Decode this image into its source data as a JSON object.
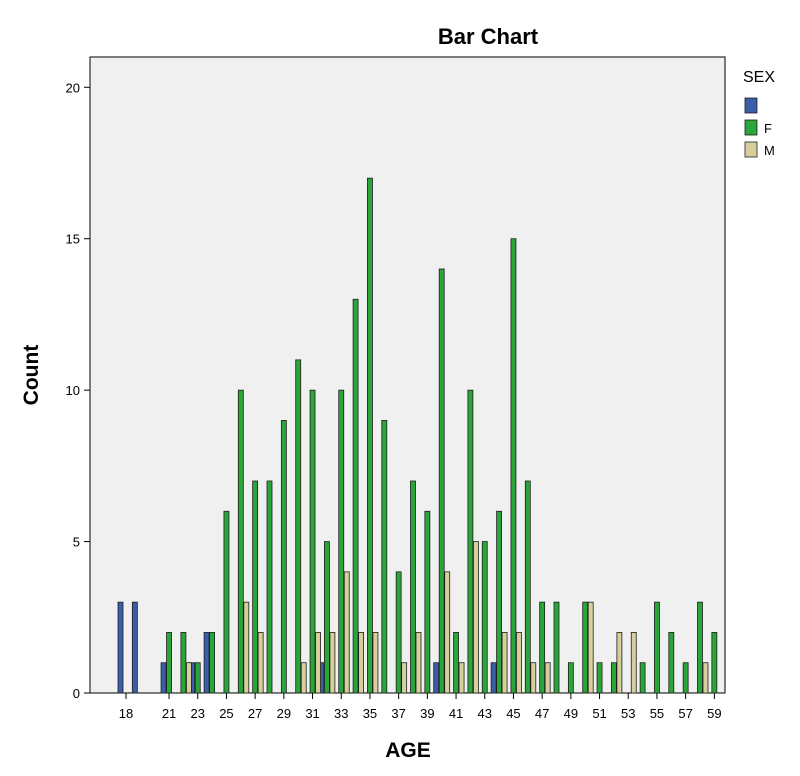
{
  "chart_data": {
    "type": "bar",
    "title": "Bar Chart",
    "xlabel": "AGE",
    "ylabel": "Count",
    "ylim": [
      0,
      21
    ],
    "y_ticks": [
      0,
      5,
      10,
      15,
      20
    ],
    "x": [
      18,
      19,
      20,
      21,
      22,
      23,
      24,
      25,
      26,
      27,
      28,
      29,
      30,
      31,
      32,
      33,
      34,
      35,
      36,
      37,
      38,
      39,
      40,
      41,
      42,
      43,
      44,
      45,
      46,
      47,
      48,
      49,
      50,
      51,
      52,
      53,
      54,
      55,
      56,
      57,
      58,
      59
    ],
    "x_tick_labels": [
      "18",
      "21",
      "23",
      "25",
      "27",
      "29",
      "31",
      "33",
      "35",
      "37",
      "39",
      "41",
      "43",
      "45",
      "47",
      "49",
      "51",
      "53",
      "55",
      "57",
      "59"
    ],
    "x_tick_positions": [
      18,
      21,
      23,
      25,
      27,
      29,
      31,
      33,
      35,
      37,
      39,
      41,
      43,
      45,
      47,
      49,
      51,
      53,
      55,
      57,
      59
    ],
    "grid": false,
    "legend": {
      "title": "SEX",
      "placement": "right"
    },
    "series": [
      {
        "name": "",
        "color": "#3a5fa8",
        "values": [
          3,
          3,
          0,
          1,
          0,
          1,
          2,
          0,
          0,
          0,
          0,
          0,
          0,
          0,
          1,
          0,
          0,
          0,
          0,
          0,
          0,
          0,
          1,
          0,
          0,
          0,
          1,
          0,
          0,
          0,
          0,
          0,
          0,
          0,
          0,
          0,
          0,
          0,
          0,
          0,
          0,
          0
        ]
      },
      {
        "name": "F",
        "color": "#2aa53a",
        "values": [
          0,
          0,
          0,
          2,
          2,
          1,
          2,
          6,
          10,
          7,
          7,
          9,
          11,
          10,
          5,
          10,
          13,
          17,
          9,
          4,
          7,
          6,
          14,
          2,
          10,
          5,
          6,
          15,
          7,
          3,
          3,
          1,
          3,
          1,
          1,
          0,
          1,
          3,
          2,
          1,
          3,
          2
        ]
      },
      {
        "name": "M",
        "color": "#d6cf9c",
        "values": [
          0,
          0,
          0,
          0,
          1,
          0,
          0,
          0,
          3,
          2,
          0,
          0,
          1,
          2,
          2,
          4,
          2,
          2,
          0,
          1,
          2,
          0,
          4,
          1,
          5,
          0,
          2,
          2,
          1,
          1,
          0,
          0,
          3,
          0,
          2,
          2,
          0,
          0,
          0,
          0,
          1,
          0
        ]
      }
    ]
  }
}
